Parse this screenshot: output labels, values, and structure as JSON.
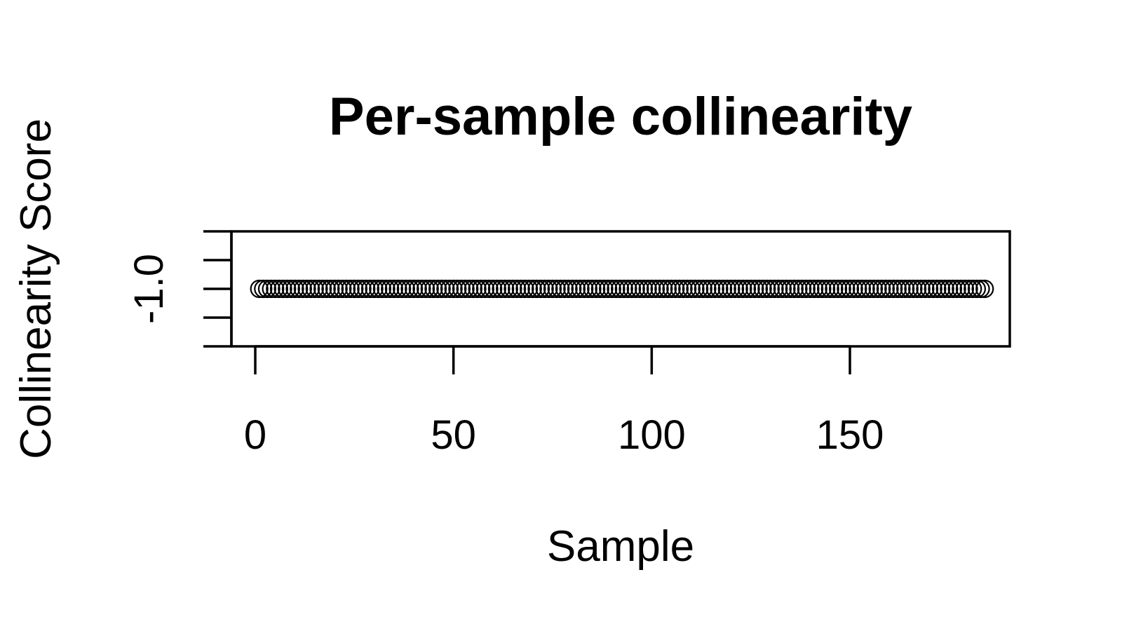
{
  "chart_data": {
    "type": "scatter",
    "title": "Per-sample collinearity",
    "xlabel": "Sample",
    "ylabel": "Collinearity Score",
    "xlim": [
      -5,
      190
    ],
    "ylim": [
      -1.04,
      -0.96
    ],
    "x_ticks": [
      0,
      50,
      100,
      150
    ],
    "y_ticks": [
      -1.04,
      -1.02,
      -1.0,
      -0.98,
      -0.96
    ],
    "y_tick_labels": [
      {
        "value": -1.0,
        "label": "-1.0"
      }
    ],
    "series": [
      {
        "x_start": 1,
        "x_end": 184,
        "y": -1.0,
        "marker": "open-circle",
        "color": "#000000"
      }
    ],
    "grid": false,
    "legend": "none"
  }
}
